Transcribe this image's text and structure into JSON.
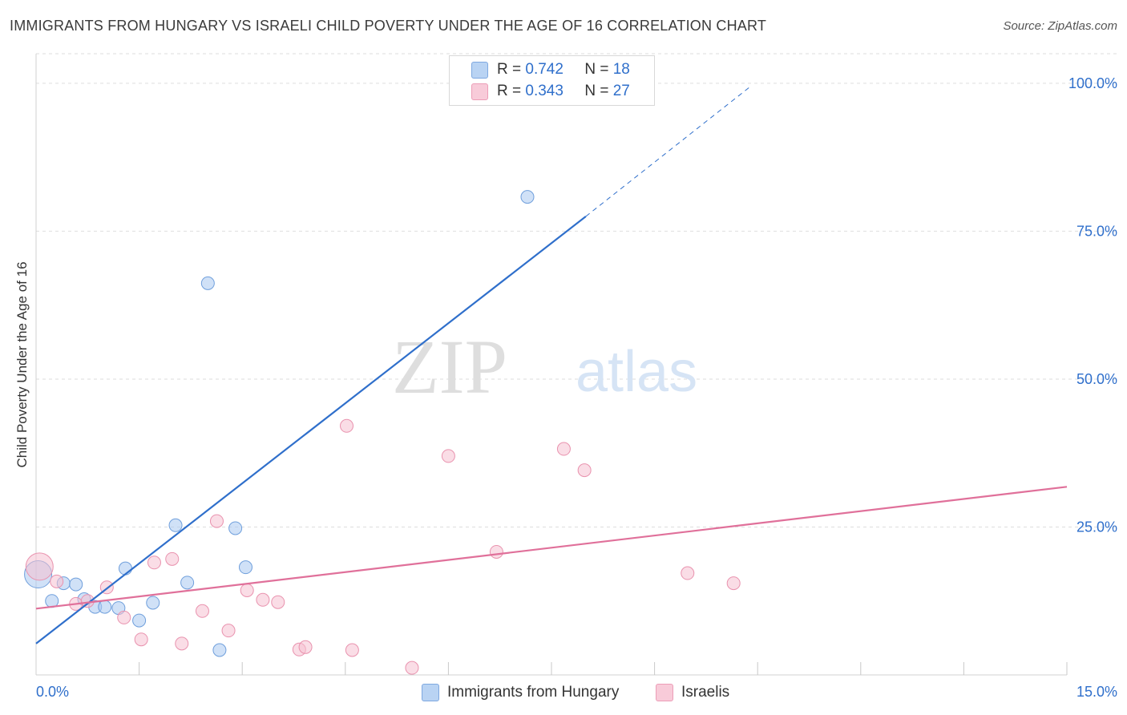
{
  "title": "IMMIGRANTS FROM HUNGARY VS ISRAELI CHILD POVERTY UNDER THE AGE OF 16 CORRELATION CHART",
  "source": "Source: ZipAtlas.com",
  "watermark": {
    "zip": "ZIP",
    "atlas": "atlas"
  },
  "legend_stats": [
    {
      "r_label": "R =",
      "r_value": "0.742",
      "n_label": "N =",
      "n_value": "18"
    },
    {
      "r_label": "R =",
      "r_value": "0.343",
      "n_label": "N =",
      "n_value": "27"
    }
  ],
  "chart_data": {
    "type": "scatter",
    "title": "IMMIGRANTS FROM HUNGARY VS ISRAELI CHILD POVERTY UNDER THE AGE OF 16 CORRELATION CHART",
    "xlabel": "",
    "ylabel": "Child Poverty Under the Age of 16",
    "xlim": [
      0,
      15
    ],
    "ylim": [
      0,
      105
    ],
    "x_tick_labels": [
      "0.0%",
      "15.0%"
    ],
    "y_ticks": [
      25,
      50,
      75,
      100
    ],
    "y_tick_labels": [
      "25.0%",
      "50.0%",
      "75.0%",
      "100.0%"
    ],
    "grid": true,
    "series": [
      {
        "name": "Immigrants from Hungary",
        "color": "#a9c8f0",
        "stroke": "#6f9fdc",
        "line_color": "#2f6fcb",
        "r": 0.742,
        "n": 18,
        "trend": {
          "x0": 0,
          "y0": 5.3,
          "x1": 8.0,
          "y1": 77.5,
          "dash_to_x": 10.4,
          "dash_to_y": 99.5
        },
        "points": [
          {
            "x": 0.03,
            "y": 17.0,
            "big": true
          },
          {
            "x": 0.23,
            "y": 12.5
          },
          {
            "x": 0.4,
            "y": 15.5
          },
          {
            "x": 0.58,
            "y": 15.3
          },
          {
            "x": 0.7,
            "y": 12.8
          },
          {
            "x": 0.86,
            "y": 11.5
          },
          {
            "x": 1.0,
            "y": 11.5
          },
          {
            "x": 1.2,
            "y": 11.3
          },
          {
            "x": 1.3,
            "y": 18.0
          },
          {
            "x": 1.5,
            "y": 9.2
          },
          {
            "x": 1.7,
            "y": 12.2
          },
          {
            "x": 2.03,
            "y": 25.3
          },
          {
            "x": 2.2,
            "y": 15.6
          },
          {
            "x": 2.5,
            "y": 66.2
          },
          {
            "x": 2.67,
            "y": 4.2
          },
          {
            "x": 2.9,
            "y": 24.8
          },
          {
            "x": 3.05,
            "y": 18.2
          },
          {
            "x": 7.15,
            "y": 80.8
          }
        ]
      },
      {
        "name": "Israelis",
        "color": "#f6c1d1",
        "stroke": "#e992ae",
        "line_color": "#e0709a",
        "r": 0.343,
        "n": 27,
        "trend": {
          "x0": 0,
          "y0": 11.2,
          "x1": 15.0,
          "y1": 31.8
        },
        "points": [
          {
            "x": 0.05,
            "y": 18.3,
            "big": true
          },
          {
            "x": 0.3,
            "y": 15.8
          },
          {
            "x": 0.58,
            "y": 12.0
          },
          {
            "x": 0.75,
            "y": 12.5
          },
          {
            "x": 1.03,
            "y": 14.8
          },
          {
            "x": 1.28,
            "y": 9.7
          },
          {
            "x": 1.53,
            "y": 6.0
          },
          {
            "x": 1.72,
            "y": 19.0
          },
          {
            "x": 1.98,
            "y": 19.6
          },
          {
            "x": 2.12,
            "y": 5.3
          },
          {
            "x": 2.42,
            "y": 10.8
          },
          {
            "x": 2.63,
            "y": 26.0
          },
          {
            "x": 2.8,
            "y": 7.5
          },
          {
            "x": 3.07,
            "y": 14.3
          },
          {
            "x": 3.3,
            "y": 12.7
          },
          {
            "x": 3.52,
            "y": 12.3
          },
          {
            "x": 3.83,
            "y": 4.3
          },
          {
            "x": 3.92,
            "y": 4.7
          },
          {
            "x": 4.52,
            "y": 42.1
          },
          {
            "x": 4.6,
            "y": 4.2
          },
          {
            "x": 5.47,
            "y": 1.2
          },
          {
            "x": 6.0,
            "y": 37.0
          },
          {
            "x": 6.7,
            "y": 20.8
          },
          {
            "x": 7.68,
            "y": 38.2
          },
          {
            "x": 7.98,
            "y": 34.6
          },
          {
            "x": 9.48,
            "y": 17.2
          },
          {
            "x": 10.15,
            "y": 15.5
          }
        ]
      }
    ]
  }
}
